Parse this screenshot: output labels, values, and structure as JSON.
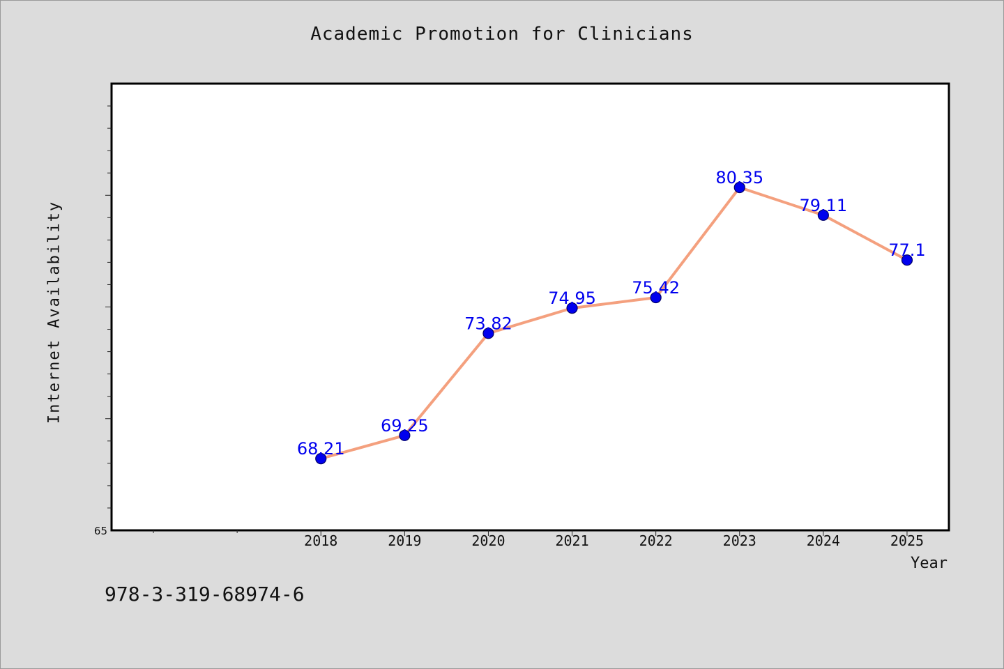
{
  "chart_data": {
    "type": "line",
    "title": "Academic Promotion for Clinicians",
    "xlabel": "Year",
    "ylabel": "Internet Availability",
    "x": [
      "2018",
      "2019",
      "2020",
      "2021",
      "2022",
      "2023",
      "2024",
      "2025"
    ],
    "series": [
      {
        "values": [
          68.21,
          69.25,
          73.82,
          74.95,
          75.42,
          80.35,
          79.11,
          77.1
        ],
        "data_labels": [
          "68.21",
          "69.25",
          "73.82",
          "74.95",
          "75.42",
          "80.35",
          "79.11",
          "77.1"
        ]
      }
    ],
    "y_tick_labels": [
      {
        "value": 65,
        "label": "65"
      }
    ],
    "ylim": [
      65,
      85
    ],
    "xlim": [
      2015.5,
      2025.5
    ],
    "grid": false,
    "legend": "none",
    "colors": {
      "line": "#f4a07e",
      "marker": "#0000ee",
      "marker_edge": "#000066",
      "label": "#0000ee",
      "plot_background": "#ffffff",
      "page_background": "#dcdcdc"
    }
  },
  "footer": {
    "isbn": "978-3-319-68974-6"
  }
}
